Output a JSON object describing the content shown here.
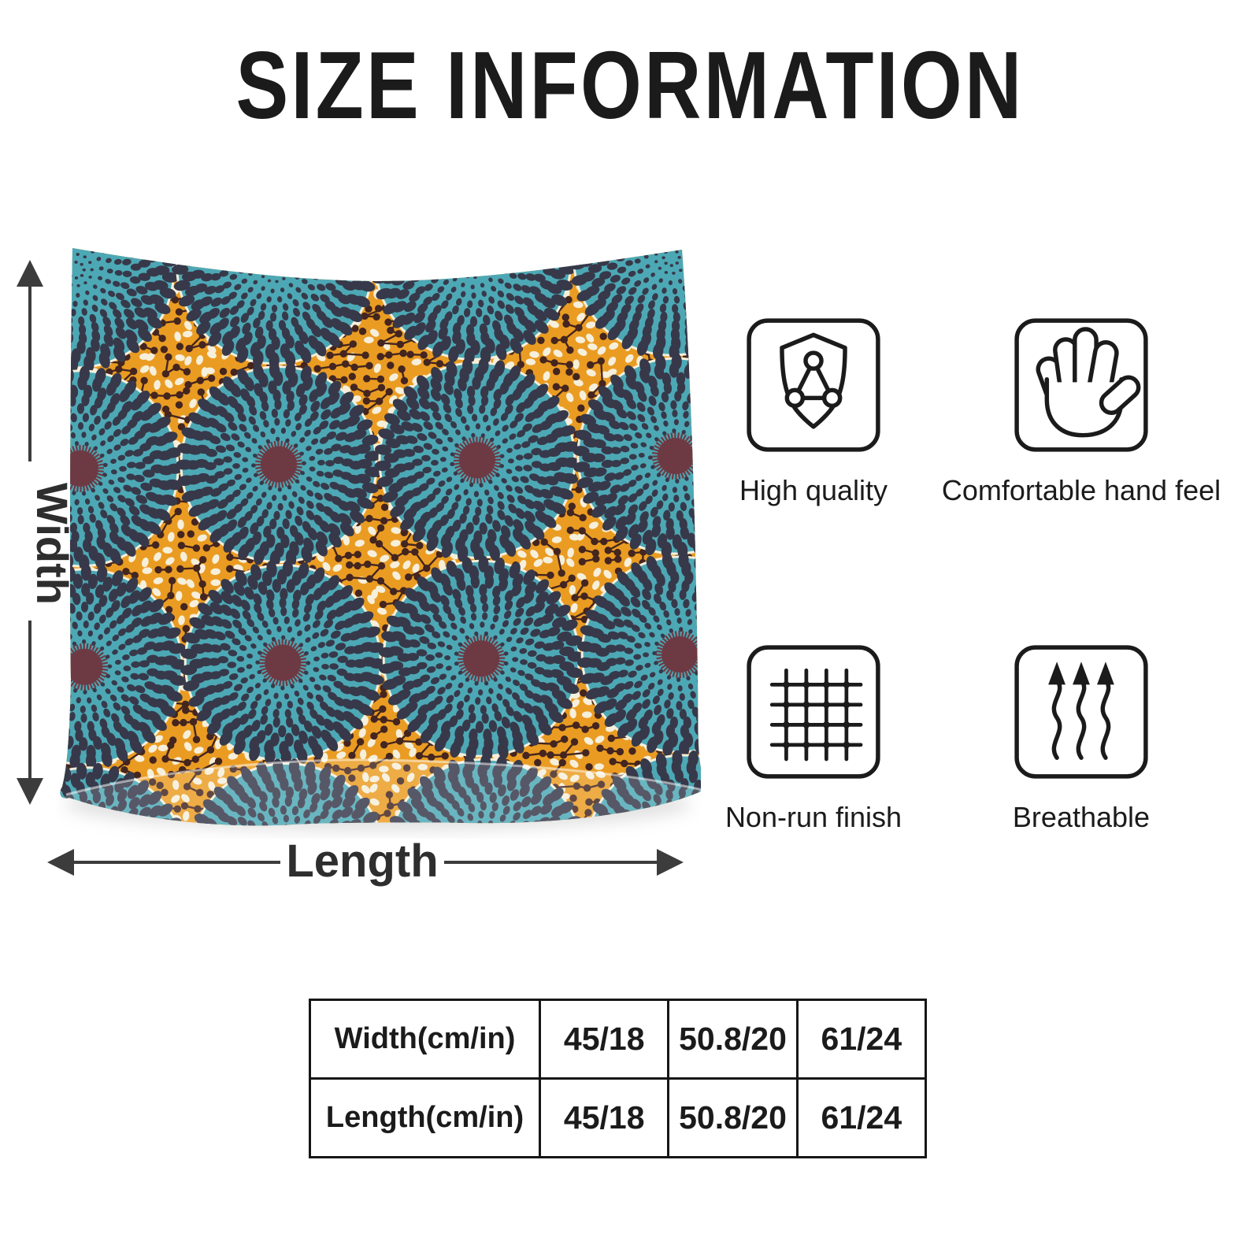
{
  "colors": {
    "ink": "#1b1b1b",
    "arrow": "#3c3c3c",
    "table_border": "#161616"
  },
  "title": "SIZE INFORMATION",
  "pillow": {
    "width_label": "Width",
    "length_label": "Length",
    "pattern": {
      "teal": "#4da8b5",
      "dot_dark": "#37394a",
      "orange": "#ea9c22",
      "berry": "#44251f",
      "cream": "#f6efdb",
      "center_maroon": "#6d3a44"
    }
  },
  "features": [
    {
      "id": "high-quality",
      "label": "High quality"
    },
    {
      "id": "comfortable-hand-feel",
      "label": "Comfortable hand feel"
    },
    {
      "id": "non-run-finish",
      "label": "Non-run finish"
    },
    {
      "id": "breathable",
      "label": "Breathable"
    }
  ],
  "size_table": {
    "rows": [
      {
        "header": "Width(cm/in)",
        "values": [
          "45/18",
          "50.8/20",
          "61/24"
        ]
      },
      {
        "header": "Length(cm/in)",
        "values": [
          "45/18",
          "50.8/20",
          "61/24"
        ]
      }
    ]
  }
}
